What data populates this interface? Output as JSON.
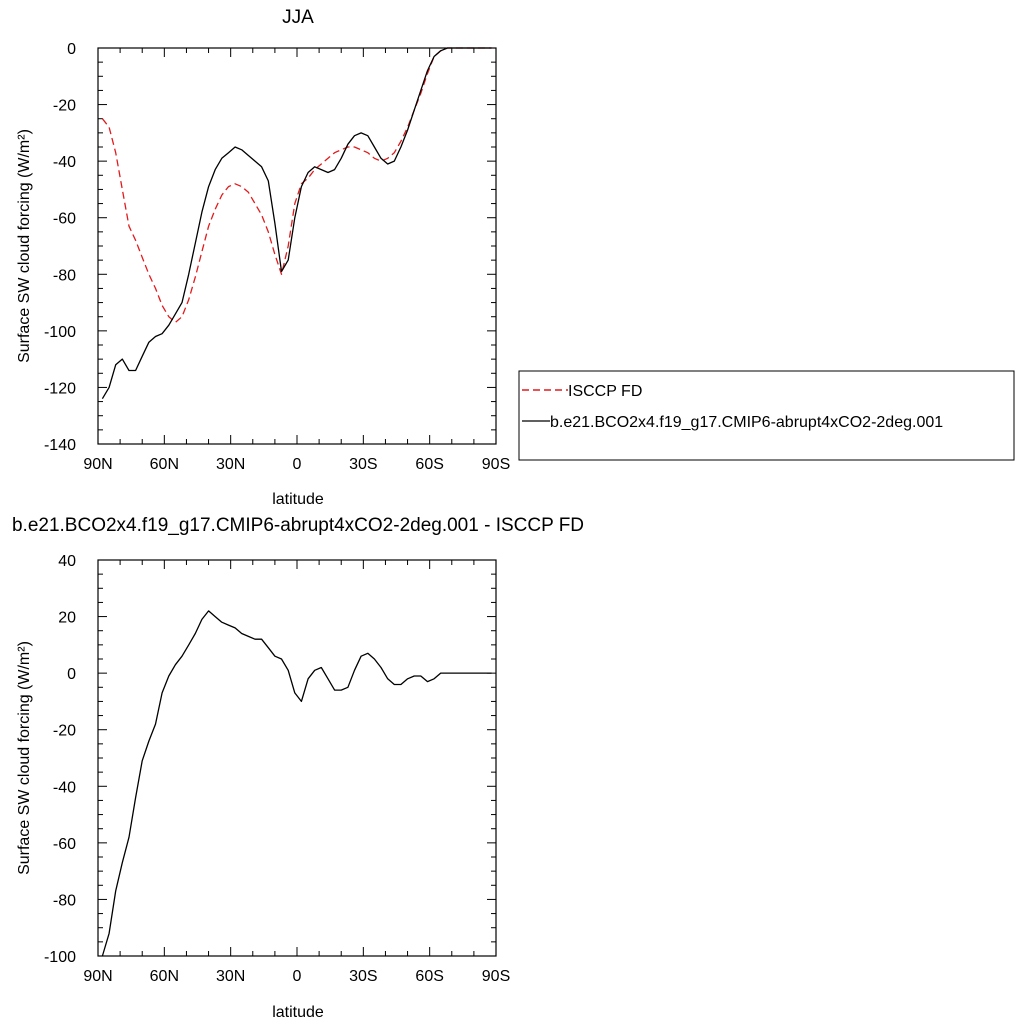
{
  "chart_data": [
    {
      "type": "line",
      "title": "JJA",
      "xlabel": "latitude",
      "ylabel": "Surface SW cloud forcing (W/m²)",
      "xlim": [
        90,
        -90
      ],
      "ylim": [
        -140,
        0
      ],
      "x_tick_values": [
        90,
        60,
        30,
        0,
        -30,
        -60,
        -90
      ],
      "x_tick_labels": [
        "90N",
        "60N",
        "30N",
        "0",
        "30S",
        "60S",
        "90S"
      ],
      "y_tick_values": [
        0,
        -20,
        -40,
        -60,
        -80,
        -100,
        -120,
        -140
      ],
      "y_tick_labels": [
        "0",
        "-20",
        "-40",
        "-60",
        "-80",
        "-100",
        "-120",
        "-140"
      ],
      "legend_position": "right",
      "series": [
        {
          "name": "ISCCP FD",
          "color": "#e31a1c",
          "dash": "dashed",
          "points": [
            [
              88,
              -25
            ],
            [
              85,
              -28
            ],
            [
              82,
              -37
            ],
            [
              79,
              -50
            ],
            [
              76,
              -63
            ],
            [
              73,
              -68
            ],
            [
              70,
              -74
            ],
            [
              67,
              -80
            ],
            [
              64,
              -85
            ],
            [
              61,
              -91
            ],
            [
              58,
              -95
            ],
            [
              55,
              -97
            ],
            [
              52,
              -95
            ],
            [
              49,
              -89
            ],
            [
              46,
              -81
            ],
            [
              43,
              -72
            ],
            [
              40,
              -63
            ],
            [
              37,
              -57
            ],
            [
              34,
              -52
            ],
            [
              31,
              -49
            ],
            [
              28,
              -48
            ],
            [
              25,
              -49
            ],
            [
              22,
              -51
            ],
            [
              19,
              -55
            ],
            [
              16,
              -59
            ],
            [
              13,
              -65
            ],
            [
              10,
              -73
            ],
            [
              7,
              -80
            ],
            [
              4,
              -70
            ],
            [
              1,
              -55
            ],
            [
              -2,
              -48
            ],
            [
              -5,
              -46
            ],
            [
              -8,
              -43
            ],
            [
              -11,
              -41
            ],
            [
              -14,
              -39
            ],
            [
              -17,
              -37
            ],
            [
              -20,
              -36
            ],
            [
              -23,
              -35
            ],
            [
              -26,
              -35
            ],
            [
              -29,
              -36
            ],
            [
              -32,
              -37
            ],
            [
              -35,
              -39
            ],
            [
              -38,
              -40
            ],
            [
              -41,
              -39
            ],
            [
              -44,
              -37
            ],
            [
              -47,
              -33
            ],
            [
              -50,
              -28
            ],
            [
              -53,
              -22
            ],
            [
              -56,
              -16
            ],
            [
              -59,
              -9
            ],
            [
              -62,
              -3
            ],
            [
              -65,
              -1
            ],
            [
              -68,
              0
            ],
            [
              -71,
              0
            ],
            [
              -74,
              0
            ],
            [
              -77,
              0
            ],
            [
              -80,
              0
            ],
            [
              -83,
              0
            ],
            [
              -86,
              0
            ],
            [
              -88,
              0
            ]
          ]
        },
        {
          "name": "b.e21.BCO2x4.f19_g17.CMIP6-abrupt4xCO2-2deg.001",
          "color": "#000000",
          "dash": "solid",
          "points": [
            [
              88,
              -124
            ],
            [
              85,
              -120
            ],
            [
              82,
              -112
            ],
            [
              79,
              -110
            ],
            [
              76,
              -114
            ],
            [
              73,
              -114
            ],
            [
              70,
              -109
            ],
            [
              67,
              -104
            ],
            [
              64,
              -102
            ],
            [
              61,
              -101
            ],
            [
              58,
              -98
            ],
            [
              55,
              -94
            ],
            [
              52,
              -90
            ],
            [
              49,
              -80
            ],
            [
              46,
              -69
            ],
            [
              43,
              -58
            ],
            [
              40,
              -49
            ],
            [
              37,
              -43
            ],
            [
              34,
              -39
            ],
            [
              31,
              -37
            ],
            [
              28,
              -35
            ],
            [
              25,
              -36
            ],
            [
              22,
              -38
            ],
            [
              19,
              -40
            ],
            [
              16,
              -42
            ],
            [
              13,
              -47
            ],
            [
              10,
              -62
            ],
            [
              7,
              -79
            ],
            [
              4,
              -75
            ],
            [
              1,
              -60
            ],
            [
              -2,
              -49
            ],
            [
              -5,
              -44
            ],
            [
              -8,
              -42
            ],
            [
              -11,
              -43
            ],
            [
              -14,
              -44
            ],
            [
              -17,
              -43
            ],
            [
              -20,
              -39
            ],
            [
              -23,
              -34
            ],
            [
              -26,
              -31
            ],
            [
              -29,
              -30
            ],
            [
              -32,
              -31
            ],
            [
              -35,
              -35
            ],
            [
              -38,
              -39
            ],
            [
              -41,
              -41
            ],
            [
              -44,
              -40
            ],
            [
              -47,
              -35
            ],
            [
              -50,
              -29
            ],
            [
              -53,
              -22
            ],
            [
              -56,
              -15
            ],
            [
              -59,
              -8
            ],
            [
              -62,
              -3
            ],
            [
              -65,
              -1
            ],
            [
              -68,
              0
            ],
            [
              -71,
              0
            ],
            [
              -74,
              0
            ],
            [
              -77,
              0
            ],
            [
              -80,
              0
            ],
            [
              -83,
              0
            ],
            [
              -86,
              0
            ],
            [
              -88,
              0
            ]
          ]
        }
      ]
    },
    {
      "type": "line",
      "title": "b.e21.BCO2x4.f19_g17.CMIP6-abrupt4xCO2-2deg.001 - ISCCP FD",
      "xlabel": "latitude",
      "ylabel": "Surface SW cloud forcing (W/m²)",
      "xlim": [
        90,
        -90
      ],
      "ylim": [
        -100,
        40
      ],
      "x_tick_values": [
        90,
        60,
        30,
        0,
        -30,
        -60,
        -90
      ],
      "x_tick_labels": [
        "90N",
        "60N",
        "30N",
        "0",
        "30S",
        "60S",
        "90S"
      ],
      "y_tick_values": [
        40,
        20,
        0,
        -20,
        -40,
        -60,
        -80,
        -100
      ],
      "y_tick_labels": [
        "40",
        "20",
        "0",
        "-20",
        "-40",
        "-60",
        "-80",
        "-100"
      ],
      "series": [
        {
          "color": "#000000",
          "dash": "solid",
          "points": [
            [
              88,
              -100
            ],
            [
              85,
              -92
            ],
            [
              82,
              -77
            ],
            [
              79,
              -67
            ],
            [
              76,
              -58
            ],
            [
              73,
              -44
            ],
            [
              70,
              -31
            ],
            [
              67,
              -24
            ],
            [
              64,
              -18
            ],
            [
              61,
              -7
            ],
            [
              58,
              -1
            ],
            [
              55,
              3
            ],
            [
              52,
              6
            ],
            [
              49,
              10
            ],
            [
              46,
              14
            ],
            [
              43,
              19
            ],
            [
              40,
              22
            ],
            [
              37,
              20
            ],
            [
              34,
              18
            ],
            [
              31,
              17
            ],
            [
              28,
              16
            ],
            [
              25,
              14
            ],
            [
              22,
              13
            ],
            [
              19,
              12
            ],
            [
              16,
              12
            ],
            [
              13,
              9
            ],
            [
              10,
              6
            ],
            [
              7,
              5
            ],
            [
              4,
              1
            ],
            [
              1,
              -7
            ],
            [
              -2,
              -10
            ],
            [
              -5,
              -2
            ],
            [
              -8,
              1
            ],
            [
              -11,
              2
            ],
            [
              -14,
              -2
            ],
            [
              -17,
              -6
            ],
            [
              -20,
              -6
            ],
            [
              -23,
              -5
            ],
            [
              -26,
              1
            ],
            [
              -29,
              6
            ],
            [
              -32,
              7
            ],
            [
              -35,
              5
            ],
            [
              -38,
              2
            ],
            [
              -41,
              -2
            ],
            [
              -44,
              -4
            ],
            [
              -47,
              -4
            ],
            [
              -50,
              -2
            ],
            [
              -53,
              -1
            ],
            [
              -56,
              -1
            ],
            [
              -59,
              -3
            ],
            [
              -62,
              -2
            ],
            [
              -65,
              0
            ],
            [
              -68,
              0
            ],
            [
              -71,
              0
            ],
            [
              -74,
              0
            ],
            [
              -77,
              0
            ],
            [
              -80,
              0
            ],
            [
              -83,
              0
            ],
            [
              -86,
              0
            ],
            [
              -88,
              0
            ]
          ]
        }
      ]
    }
  ]
}
